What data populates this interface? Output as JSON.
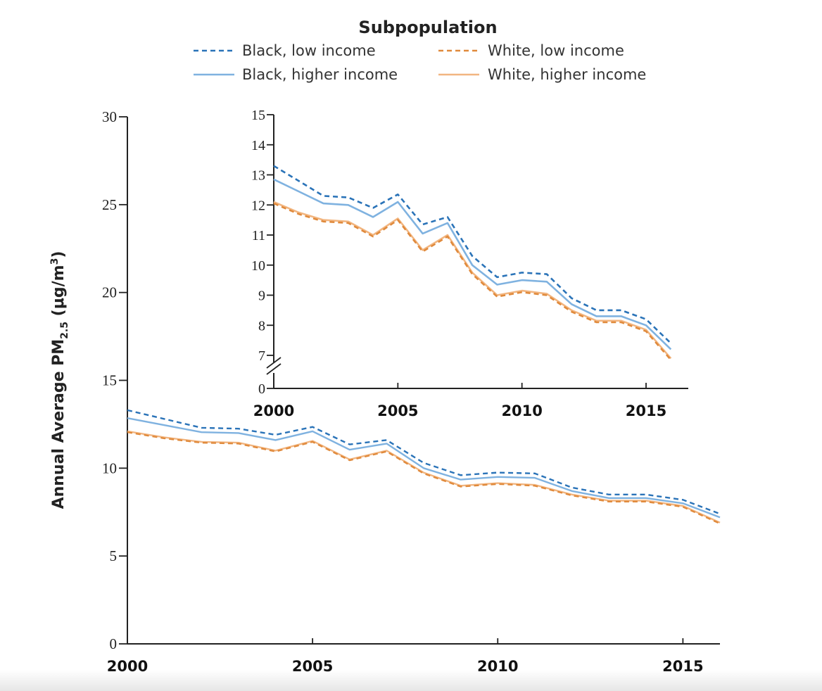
{
  "chart_data": {
    "type": "line",
    "legend": {
      "title": "Subpopulation",
      "placement": "top-center"
    },
    "ylabel": "Annual Average PM2.5 (μg/m3)",
    "ylabel_parts": {
      "main": "Annual Average PM",
      "sub": "2.5",
      "unit_open": " (μg/m",
      "sup": "3",
      "unit_close": ")"
    },
    "x": [
      2000,
      2001,
      2002,
      2003,
      2004,
      2005,
      2006,
      2007,
      2008,
      2009,
      2010,
      2011,
      2012,
      2013,
      2014,
      2015,
      2016
    ],
    "xlim": [
      2000,
      2016
    ],
    "ylim": [
      0,
      30
    ],
    "x_ticks": [
      2000,
      2005,
      2010,
      2015
    ],
    "y_ticks": [
      0,
      5,
      10,
      15,
      20,
      25,
      30
    ],
    "grid": false,
    "series": [
      {
        "name": "Black, low income",
        "color": "#2a73b8",
        "style": "dashed",
        "values": [
          13.3,
          12.8,
          12.3,
          12.25,
          11.9,
          12.35,
          11.35,
          11.6,
          10.3,
          9.6,
          9.75,
          9.7,
          8.9,
          8.5,
          8.5,
          8.2,
          7.4
        ]
      },
      {
        "name": "Black, higher income",
        "color": "#7fb2e0",
        "style": "solid",
        "values": [
          12.85,
          12.45,
          12.05,
          12.0,
          11.6,
          12.1,
          11.05,
          11.4,
          10.0,
          9.35,
          9.5,
          9.45,
          8.7,
          8.3,
          8.3,
          8.0,
          7.2
        ]
      },
      {
        "name": "White, low income",
        "color": "#e08a3c",
        "style": "dashed",
        "values": [
          12.05,
          11.7,
          11.45,
          11.4,
          10.95,
          11.5,
          10.45,
          10.95,
          9.7,
          8.95,
          9.1,
          9.0,
          8.45,
          8.1,
          8.1,
          7.8,
          6.85
        ]
      },
      {
        "name": "White, higher income",
        "color": "#f2b681",
        "style": "solid",
        "values": [
          12.1,
          11.75,
          11.5,
          11.45,
          11.0,
          11.55,
          10.5,
          11.0,
          9.75,
          9.0,
          9.15,
          9.05,
          8.5,
          8.15,
          8.15,
          7.85,
          6.9
        ]
      }
    ],
    "inset": {
      "type": "line",
      "xlim": [
        2000,
        2016
      ],
      "ylim": [
        7,
        15
      ],
      "y_break": true,
      "y_ticks": [
        0,
        7,
        8,
        9,
        10,
        11,
        12,
        13,
        14,
        15
      ],
      "x_ticks": [
        2000,
        2005,
        2010,
        2015
      ]
    }
  }
}
